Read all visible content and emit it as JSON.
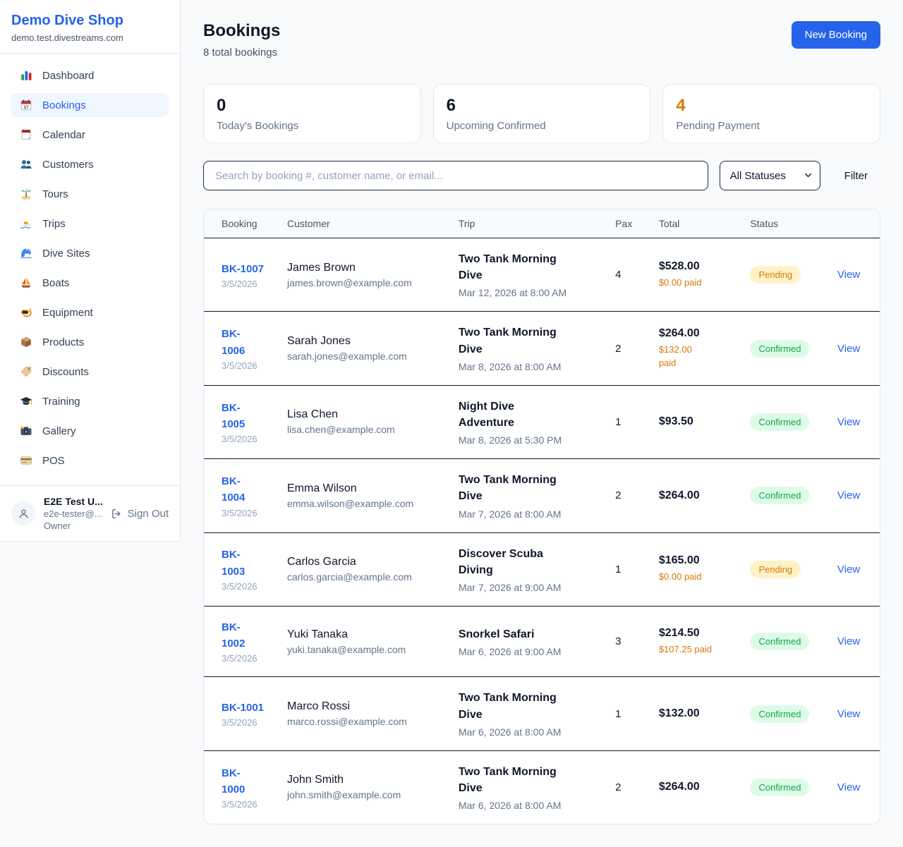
{
  "colors": {
    "accent": "#2563eb",
    "pending": "#d97706",
    "confirmed": "#16a34a",
    "dark": "#0f172a"
  },
  "sidebar": {
    "brand": "Demo Dive Shop",
    "domain": "demo.test.divestreams.com",
    "items": [
      {
        "label": "Dashboard",
        "icon": "bar-chart-icon",
        "active": false
      },
      {
        "label": "Bookings",
        "icon": "calendar-date-icon",
        "active": true
      },
      {
        "label": "Calendar",
        "icon": "tearoff-calendar-icon",
        "active": false
      },
      {
        "label": "Customers",
        "icon": "people-icon",
        "active": false
      },
      {
        "label": "Tours",
        "icon": "island-icon",
        "active": false
      },
      {
        "label": "Trips",
        "icon": "speedboat-icon",
        "active": false
      },
      {
        "label": "Dive Sites",
        "icon": "wave-icon",
        "active": false
      },
      {
        "label": "Boats",
        "icon": "sailboat-icon",
        "active": false
      },
      {
        "label": "Equipment",
        "icon": "dive-mask-icon",
        "active": false
      },
      {
        "label": "Products",
        "icon": "package-icon",
        "active": false
      },
      {
        "label": "Discounts",
        "icon": "tag-icon",
        "active": false
      },
      {
        "label": "Training",
        "icon": "graduation-cap-icon",
        "active": false
      },
      {
        "label": "Gallery",
        "icon": "camera-icon",
        "active": false
      },
      {
        "label": "POS",
        "icon": "credit-card-icon",
        "active": false
      }
    ],
    "user": {
      "name": "E2E Test U...",
      "email": "e2e-tester@...",
      "role": "Owner",
      "sign_out": "Sign Out"
    }
  },
  "header": {
    "title": "Bookings",
    "subtitle": "8 total bookings",
    "new_booking_label": "New Booking"
  },
  "stats": [
    {
      "value": "0",
      "label": "Today's Bookings",
      "value_color": "#0f172a"
    },
    {
      "value": "6",
      "label": "Upcoming Confirmed",
      "value_color": "#0f172a"
    },
    {
      "value": "4",
      "label": "Pending Payment",
      "value_color": "#d97706"
    }
  ],
  "filters": {
    "search_placeholder": "Search by booking #, customer name, or email...",
    "search_value": "",
    "status_selected": "All Statuses",
    "filter_label": "Filter"
  },
  "table": {
    "columns": [
      "Booking",
      "Customer",
      "Trip",
      "Pax",
      "Total",
      "Status"
    ],
    "view_label": "View",
    "rows": [
      {
        "id": "BK-1007",
        "date": "3/5/2026",
        "customer": "James Brown",
        "email": "james.brown@example.com",
        "trip": "Two Tank Morning Dive",
        "trip_time": "Mar 12, 2026 at 8:00 AM",
        "pax": "4",
        "total": "$528.00",
        "paid": "$0.00 paid",
        "status": "Pending"
      },
      {
        "id": "BK-\n1006",
        "date": "3/5/2026",
        "customer": "Sarah Jones",
        "email": "sarah.jones@example.com",
        "trip": "Two Tank Morning Dive",
        "trip_time": "Mar 8, 2026 at 8:00 AM",
        "pax": "2",
        "total": "$264.00",
        "paid": "$132.00\npaid",
        "status": "Confirmed"
      },
      {
        "id": "BK-\n1005",
        "date": "3/5/2026",
        "customer": "Lisa Chen",
        "email": "lisa.chen@example.com",
        "trip": "Night Dive Adventure",
        "trip_time": "Mar 8, 2026 at 5:30 PM",
        "pax": "1",
        "total": "$93.50",
        "paid": "",
        "status": "Confirmed"
      },
      {
        "id": "BK-\n1004",
        "date": "3/5/2026",
        "customer": "Emma Wilson",
        "email": "emma.wilson@example.com",
        "trip": "Two Tank Morning Dive",
        "trip_time": "Mar 7, 2026 at 8:00 AM",
        "pax": "2",
        "total": "$264.00",
        "paid": "",
        "status": "Confirmed"
      },
      {
        "id": "BK-\n1003",
        "date": "3/5/2026",
        "customer": "Carlos Garcia",
        "email": "carlos.garcia@example.com",
        "trip": "Discover Scuba Diving",
        "trip_time": "Mar 7, 2026 at 9:00 AM",
        "pax": "1",
        "total": "$165.00",
        "paid": "$0.00 paid",
        "status": "Pending"
      },
      {
        "id": "BK-\n1002",
        "date": "3/5/2026",
        "customer": "Yuki Tanaka",
        "email": "yuki.tanaka@example.com",
        "trip": "Snorkel Safari",
        "trip_time": "Mar 6, 2026 at 9:00 AM",
        "pax": "3",
        "total": "$214.50",
        "paid": "$107.25 paid",
        "status": "Confirmed"
      },
      {
        "id": "BK-1001",
        "date": "3/5/2026",
        "customer": "Marco Rossi",
        "email": "marco.rossi@example.com",
        "trip": "Two Tank Morning Dive",
        "trip_time": "Mar 6, 2026 at 8:00 AM",
        "pax": "1",
        "total": "$132.00",
        "paid": "",
        "status": "Confirmed"
      },
      {
        "id": "BK-\n1000",
        "date": "3/5/2026",
        "customer": "John Smith",
        "email": "john.smith@example.com",
        "trip": "Two Tank Morning Dive",
        "trip_time": "Mar 6, 2026 at 8:00 AM",
        "pax": "2",
        "total": "$264.00",
        "paid": "",
        "status": "Confirmed"
      }
    ]
  }
}
